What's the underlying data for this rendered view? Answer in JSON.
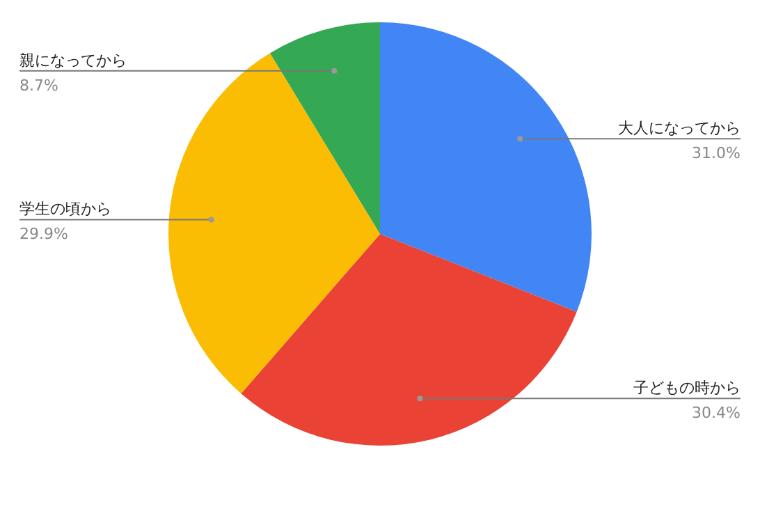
{
  "chart_data": {
    "type": "pie",
    "categories": [
      "大人になってから",
      "子どもの時から",
      "学生の頃から",
      "親になってから"
    ],
    "values": [
      31.0,
      30.4,
      29.9,
      8.7
    ],
    "colors": [
      "#4285f4",
      "#ea4335",
      "#fbbc04",
      "#34a853"
    ],
    "value_labels": [
      "31.0%",
      "30.4%",
      "29.9%",
      "8.7%"
    ],
    "legend": false
  }
}
